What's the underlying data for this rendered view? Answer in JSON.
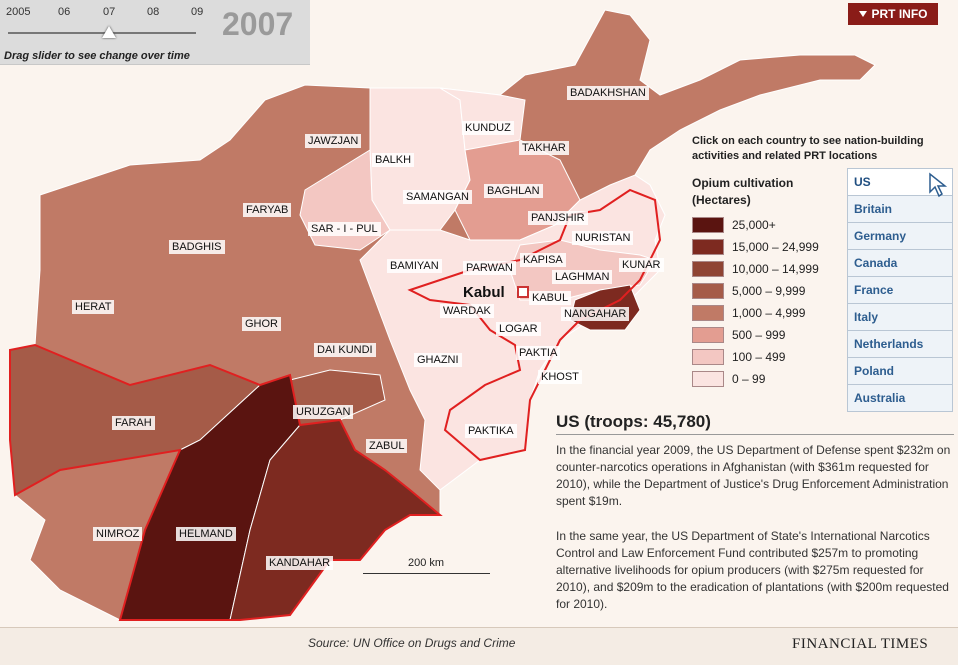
{
  "slider": {
    "ticks": [
      "2005",
      "06",
      "07",
      "08",
      "09"
    ],
    "year": "2007",
    "hint": "Drag slider to see change over time",
    "value": "07"
  },
  "prt_button": {
    "label": "PRT INFO"
  },
  "instruction": "Click on each country to see nation-building activities and related PRT locations",
  "legend": {
    "title_line1": "Opium cultivation",
    "title_line2": "(Hectares)",
    "items": [
      {
        "label": "25,000+",
        "color": "#5a1410"
      },
      {
        "label": "15,000 – 24,999",
        "color": "#7d2a20"
      },
      {
        "label": "10,000 – 14,999",
        "color": "#8f4433"
      },
      {
        "label": "5,000 – 9,999",
        "color": "#a55b48"
      },
      {
        "label": "1,000 – 4,999",
        "color": "#c07a66"
      },
      {
        "label": "500 – 999",
        "color": "#e39d91"
      },
      {
        "label": "100 – 499",
        "color": "#f3c7c2"
      },
      {
        "label": "0 – 99",
        "color": "#fbe4e1"
      }
    ]
  },
  "countries": [
    "US",
    "Britain",
    "Germany",
    "Canada",
    "France",
    "Italy",
    "Netherlands",
    "Poland",
    "Australia"
  ],
  "selected_country": "US",
  "info": {
    "heading": "US (troops: 45,780)",
    "paragraph1": "In the financial year 2009, the US Department of Defense spent $232m on counter-narcotics operations in Afghanistan (with $361m requested for 2010), while the Department of Justice's Drug Enforcement Administration spent $19m.",
    "paragraph2": "In the same year, the US Department of State's International Narcotics Control and Law Enforcement Fund contributed $257m to promoting alternative livelihoods for opium producers (with $275m requested for 2010), and $209m to the eradication of plantations (with $200m requested for 2010)."
  },
  "map": {
    "capital": "Kabul",
    "scale_label": "200 km",
    "provinces": [
      {
        "name": "BADAKHSHAN",
        "color": "#c07a66"
      },
      {
        "name": "KUNDUZ",
        "color": "#fbe4e1"
      },
      {
        "name": "TAKHAR",
        "color": "#c07a66"
      },
      {
        "name": "JAWZJAN",
        "color": "#c07a66"
      },
      {
        "name": "BALKH",
        "color": "#fbe4e1"
      },
      {
        "name": "SAMANGAN",
        "color": "#fbe4e1"
      },
      {
        "name": "BAGHLAN",
        "color": "#e39d91"
      },
      {
        "name": "FARYAB",
        "color": "#c07a66"
      },
      {
        "name": "SAR - I - PUL",
        "color": "#f3c7c2"
      },
      {
        "name": "PANJSHIR",
        "color": "#fbe4e1"
      },
      {
        "name": "NURISTAN",
        "color": "#fbe4e1"
      },
      {
        "name": "BADGHIS",
        "color": "#c07a66"
      },
      {
        "name": "BAMIYAN",
        "color": "#fbe4e1"
      },
      {
        "name": "PARWAN",
        "color": "#fbe4e1"
      },
      {
        "name": "KAPISA",
        "color": "#f3c7c2"
      },
      {
        "name": "KUNAR",
        "color": "#f3c7c2"
      },
      {
        "name": "LAGHMAN",
        "color": "#f3c7c2"
      },
      {
        "name": "KABUL",
        "color": "#f3c7c2"
      },
      {
        "name": "HERAT",
        "color": "#c07a66"
      },
      {
        "name": "GHOR",
        "color": "#c07a66"
      },
      {
        "name": "WARDAK",
        "color": "#fbe4e1"
      },
      {
        "name": "NANGAHAR",
        "color": "#7d2a20"
      },
      {
        "name": "LOGAR",
        "color": "#fbe4e1"
      },
      {
        "name": "DAI KUNDI",
        "color": "#c07a66"
      },
      {
        "name": "PAKTIA",
        "color": "#fbe4e1"
      },
      {
        "name": "GHAZNI",
        "color": "#fbe4e1"
      },
      {
        "name": "KHOST",
        "color": "#fbe4e1"
      },
      {
        "name": "FARAH",
        "color": "#a55b48"
      },
      {
        "name": "URUZGAN",
        "color": "#a55b48"
      },
      {
        "name": "ZABUL",
        "color": "#c07a66"
      },
      {
        "name": "PAKTIKA",
        "color": "#fbe4e1"
      },
      {
        "name": "NIMROZ",
        "color": "#c07a66"
      },
      {
        "name": "HELMAND",
        "color": "#5a1410"
      },
      {
        "name": "KANDAHAR",
        "color": "#7d2a20"
      }
    ]
  },
  "footer": {
    "source": "Source: UN Office on Drugs and Crime",
    "brand": "FINANCIAL TIMES"
  }
}
